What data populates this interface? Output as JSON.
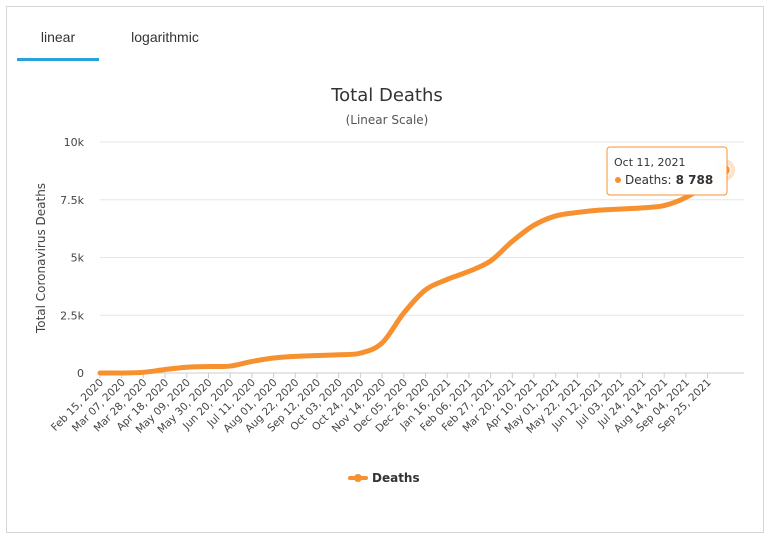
{
  "tabs": [
    {
      "label": "linear",
      "active": true
    },
    {
      "label": "logarithmic",
      "active": false
    }
  ],
  "colors": {
    "series": "#f7912f",
    "tab_active": "#27a2db",
    "grid": "#e6e6e6"
  },
  "chart_data": {
    "type": "line",
    "title": "Total Deaths",
    "subtitle": "(Linear Scale)",
    "xlabel": "",
    "ylabel": "Total Coronavirus Deaths",
    "ylim": [
      0,
      10000
    ],
    "yticks": [
      "0",
      "2.5k",
      "5k",
      "7.5k",
      "10k"
    ],
    "ytick_values": [
      0,
      2500,
      5000,
      7500,
      10000
    ],
    "categories": [
      "Feb 15, 2020",
      "Mar 07, 2020",
      "Mar 28, 2020",
      "Apr 18, 2020",
      "May 09, 2020",
      "May 30, 2020",
      "Jun 20, 2020",
      "Jul 11, 2020",
      "Aug 01, 2020",
      "Aug 22, 2020",
      "Sep 12, 2020",
      "Oct 03, 2020",
      "Oct 24, 2020",
      "Nov 14, 2020",
      "Dec 05, 2020",
      "Dec 26, 2020",
      "Jan 16, 2021",
      "Feb 06, 2021",
      "Feb 27, 2021",
      "Mar 20, 2021",
      "Apr 10, 2021",
      "May 01, 2021",
      "May 22, 2021",
      "Jun 12, 2021",
      "Jul 03, 2021",
      "Jul 24, 2021",
      "Aug 14, 2021",
      "Sep 04, 2021",
      "Sep 25, 2021"
    ],
    "grid": true,
    "legend_position": "bottom-center",
    "series": [
      {
        "name": "Deaths",
        "x": [
          "Feb 15, 2020",
          "Mar 07, 2020",
          "Mar 28, 2020",
          "Apr 18, 2020",
          "May 09, 2020",
          "May 30, 2020",
          "Jun 20, 2020",
          "Jul 11, 2020",
          "Aug 01, 2020",
          "Aug 22, 2020",
          "Sep 12, 2020",
          "Oct 03, 2020",
          "Oct 24, 2020",
          "Nov 14, 2020",
          "Dec 05, 2020",
          "Dec 26, 2020",
          "Jan 16, 2021",
          "Feb 06, 2021",
          "Feb 27, 2021",
          "Mar 20, 2021",
          "Apr 10, 2021",
          "May 01, 2021",
          "May 22, 2021",
          "Jun 12, 2021",
          "Jul 03, 2021",
          "Jul 24, 2021",
          "Aug 14, 2021",
          "Sep 04, 2021",
          "Sep 25, 2021",
          "Oct 11, 2021"
        ],
        "values": [
          0,
          0,
          30,
          150,
          250,
          280,
          300,
          500,
          650,
          720,
          760,
          790,
          860,
          1300,
          2600,
          3600,
          4050,
          4400,
          4850,
          5700,
          6400,
          6800,
          6950,
          7050,
          7100,
          7150,
          7250,
          7600,
          8200,
          8788
        ]
      }
    ],
    "tooltip": {
      "date": "Oct 11, 2021",
      "label": "Deaths:",
      "value": "8 788"
    }
  }
}
